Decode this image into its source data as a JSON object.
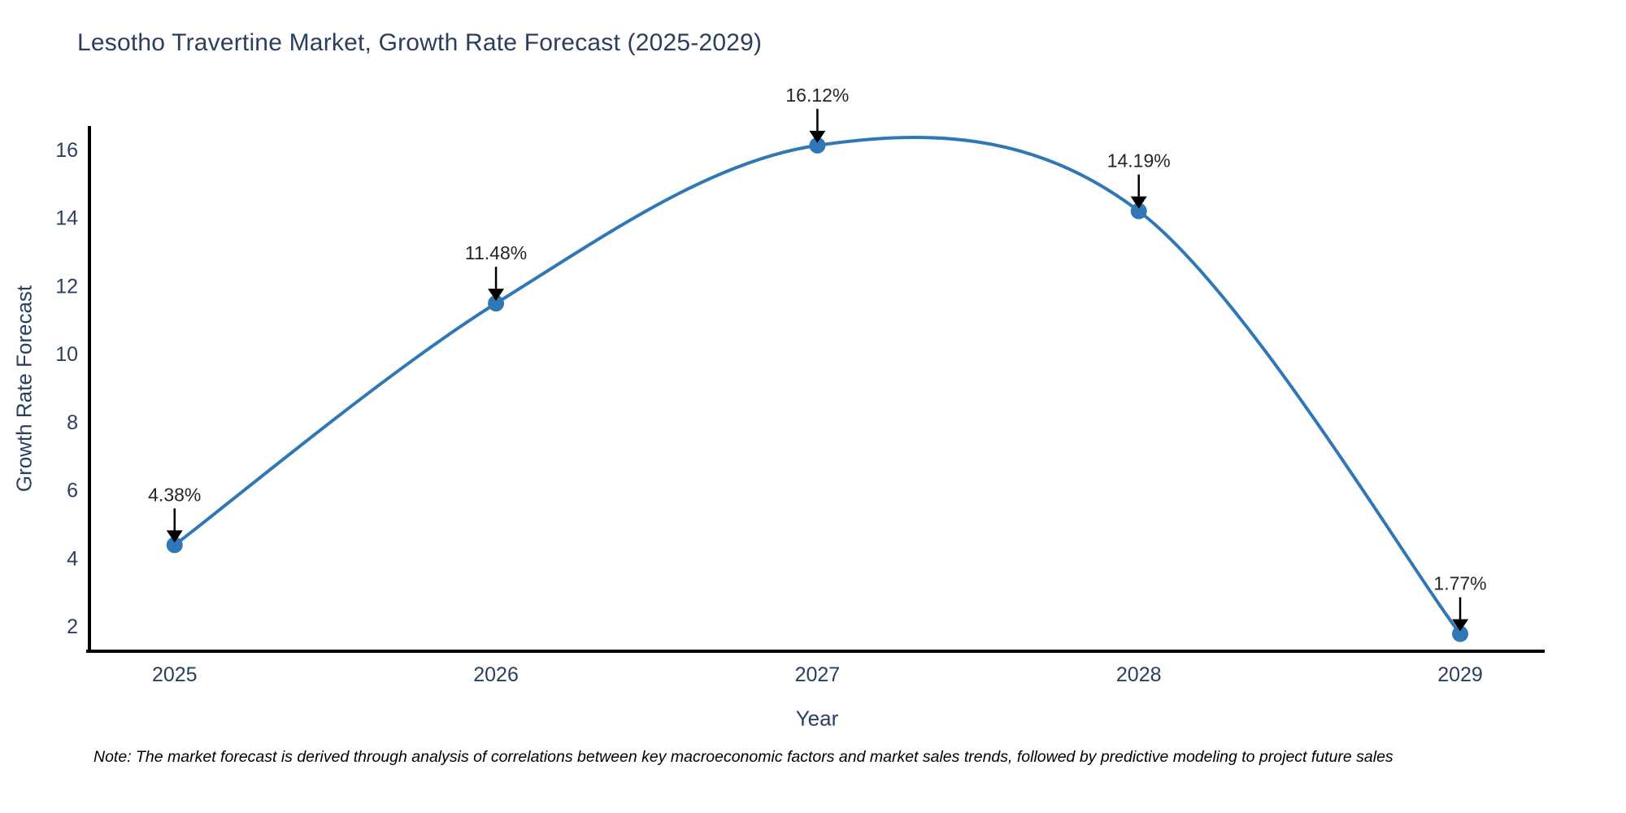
{
  "note": {
    "text": "Note: The market forecast is derived through analysis of correlations between key macroeconomic factors and market sales trends, followed by predictive modeling to project future sales"
  },
  "chart_data": {
    "type": "line",
    "line_shape": "spline",
    "title": "Lesotho Travertine Market, Growth Rate Forecast (2025-2029)",
    "xlabel": "Year",
    "ylabel": "Growth Rate Forecast",
    "x": [
      2025,
      2026,
      2027,
      2028,
      2029
    ],
    "values": [
      4.38,
      11.48,
      16.12,
      14.19,
      1.77
    ],
    "point_labels": [
      "4.38%",
      "11.48%",
      "16.12%",
      "14.19%",
      "1.77%"
    ],
    "xticks": [
      2025,
      2026,
      2027,
      2028,
      2029
    ],
    "yticks": [
      2,
      4,
      6,
      8,
      10,
      12,
      14,
      16
    ],
    "xlim": [
      2024.735,
      2029.263
    ],
    "ylim": [
      1.26,
      16.69
    ],
    "grid": false,
    "legend": "none",
    "annotation_style": "value label above each point with downward black arrow",
    "colors": {
      "line": "#2f78b5",
      "marker": "#2f78b5",
      "axis_line": "#000000",
      "tick_label": "#2a3f5f",
      "axis_title": "#2a3f5f",
      "title": "#2a3f5f",
      "annotation_text": "#262626",
      "arrow": "#000000"
    }
  }
}
